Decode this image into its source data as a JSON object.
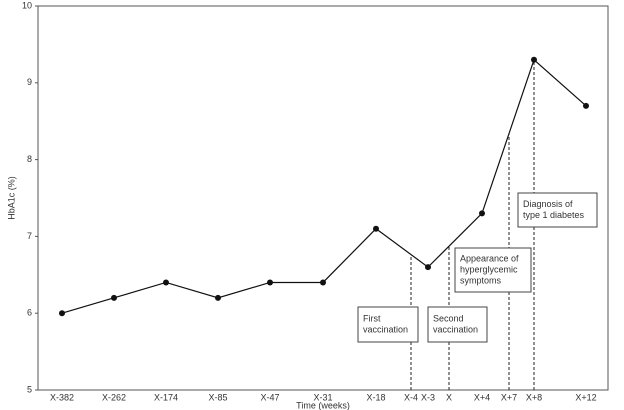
{
  "chart_data": {
    "type": "line",
    "y_label": "HbA1c (%)",
    "x_label": "Time (weeks)",
    "categories": [
      "X-382",
      "X-262",
      "X-174",
      "X-85",
      "X-47",
      "X-31",
      "X-18",
      "X-4",
      "X-3",
      "X",
      "X+4",
      "X+7",
      "X+8",
      "X+12"
    ],
    "series": [
      {
        "color": "#111111",
        "x": [
          "X-382",
          "X-262",
          "X-174",
          "X-85",
          "X-47",
          "X-31",
          "X-18",
          "X-3",
          "X+4",
          "X+8",
          "X+12"
        ],
        "values": [
          6.0,
          6.2,
          6.4,
          6.2,
          6.4,
          6.4,
          7.1,
          6.6,
          7.3,
          9.3,
          8.7
        ]
      }
    ],
    "ylim": [
      5,
      10
    ],
    "yticks": [
      5,
      6,
      7,
      8,
      9,
      10
    ],
    "annotations": [
      {
        "x": "X-4",
        "lines": [
          "First",
          "vaccination"
        ]
      },
      {
        "x": "X",
        "lines": [
          "Second",
          "vaccination"
        ]
      },
      {
        "x": "X+7",
        "lines": [
          "Appearance of",
          "hyperglycemic",
          "symptoms"
        ]
      },
      {
        "x": "X+8",
        "lines": [
          "Diagnosis of",
          "type 1 diabetes"
        ]
      }
    ]
  }
}
